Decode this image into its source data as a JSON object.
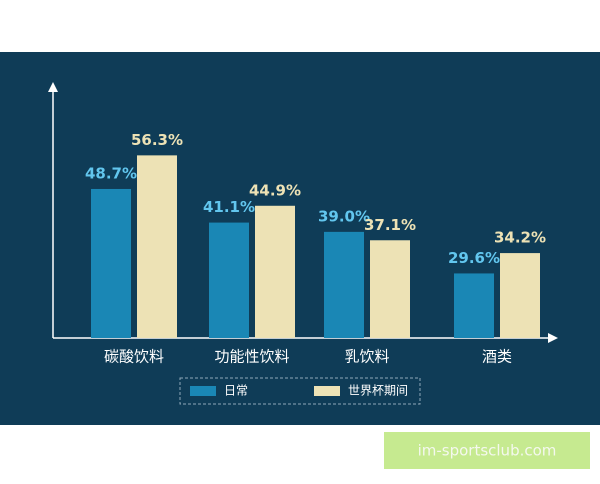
{
  "chart_data": {
    "type": "bar",
    "categories": [
      "碳酸饮料",
      "功能性饮料",
      "乳饮料",
      "酒类"
    ],
    "series": [
      {
        "name": "日常",
        "color": "#1a87b5",
        "label_color": "#62c6ee",
        "values": [
          48.7,
          41.1,
          39.0,
          29.6
        ],
        "value_labels": [
          "48.7%",
          "41.1%",
          "39.0%",
          "29.6%"
        ]
      },
      {
        "name": "世界杯期间",
        "color": "#ede2b5",
        "label_color": "#ede2b5",
        "values": [
          56.3,
          44.9,
          37.1,
          34.2
        ],
        "value_labels": [
          "56.3%",
          "44.9%",
          "37.1%",
          "34.2%"
        ]
      }
    ],
    "ylim": [
      15,
      60
    ],
    "grid": false
  },
  "watermark": "im-sportsclub.com"
}
